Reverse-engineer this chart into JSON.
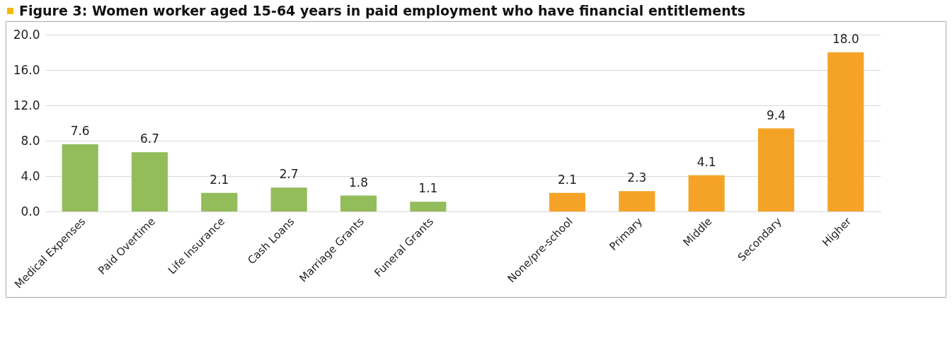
{
  "chart_data": {
    "type": "bar",
    "title": "Figure 3: Women worker aged 15-64 years in paid employment who have financial entitlements",
    "categories": [
      "Medical Expenses",
      "Paid Overtime",
      "Life Insurance",
      "Cash Loans",
      "Marriage Grants",
      "Funeral Grants",
      null,
      "None/pre-school",
      "Primary",
      "Middle",
      "Secondary",
      "Higher"
    ],
    "values": [
      7.6,
      6.7,
      2.1,
      2.7,
      1.8,
      1.1,
      null,
      2.1,
      2.3,
      4.1,
      9.4,
      18.0
    ],
    "value_labels": [
      "7.6",
      "6.7",
      "2.1",
      "2.7",
      "1.8",
      "1.1",
      null,
      "2.1",
      "2.3",
      "4.1",
      "9.4",
      "18.0"
    ],
    "colors": [
      "#92bd5a",
      "#92bd5a",
      "#92bd5a",
      "#92bd5a",
      "#92bd5a",
      "#92bd5a",
      "#92bd5a",
      "#f5a327",
      "#f5a327",
      "#f5a327",
      "#f5a327",
      "#f5a327"
    ],
    "ylim": [
      0,
      20
    ],
    "yticks": [
      {
        "value": 0,
        "label": "0.0"
      },
      {
        "value": 4,
        "label": "4.0"
      },
      {
        "value": 8,
        "label": "8.0"
      },
      {
        "value": 12,
        "label": "12.0"
      },
      {
        "value": 16,
        "label": "16.0"
      },
      {
        "value": 20,
        "label": "20.0"
      }
    ],
    "grid": "y"
  }
}
